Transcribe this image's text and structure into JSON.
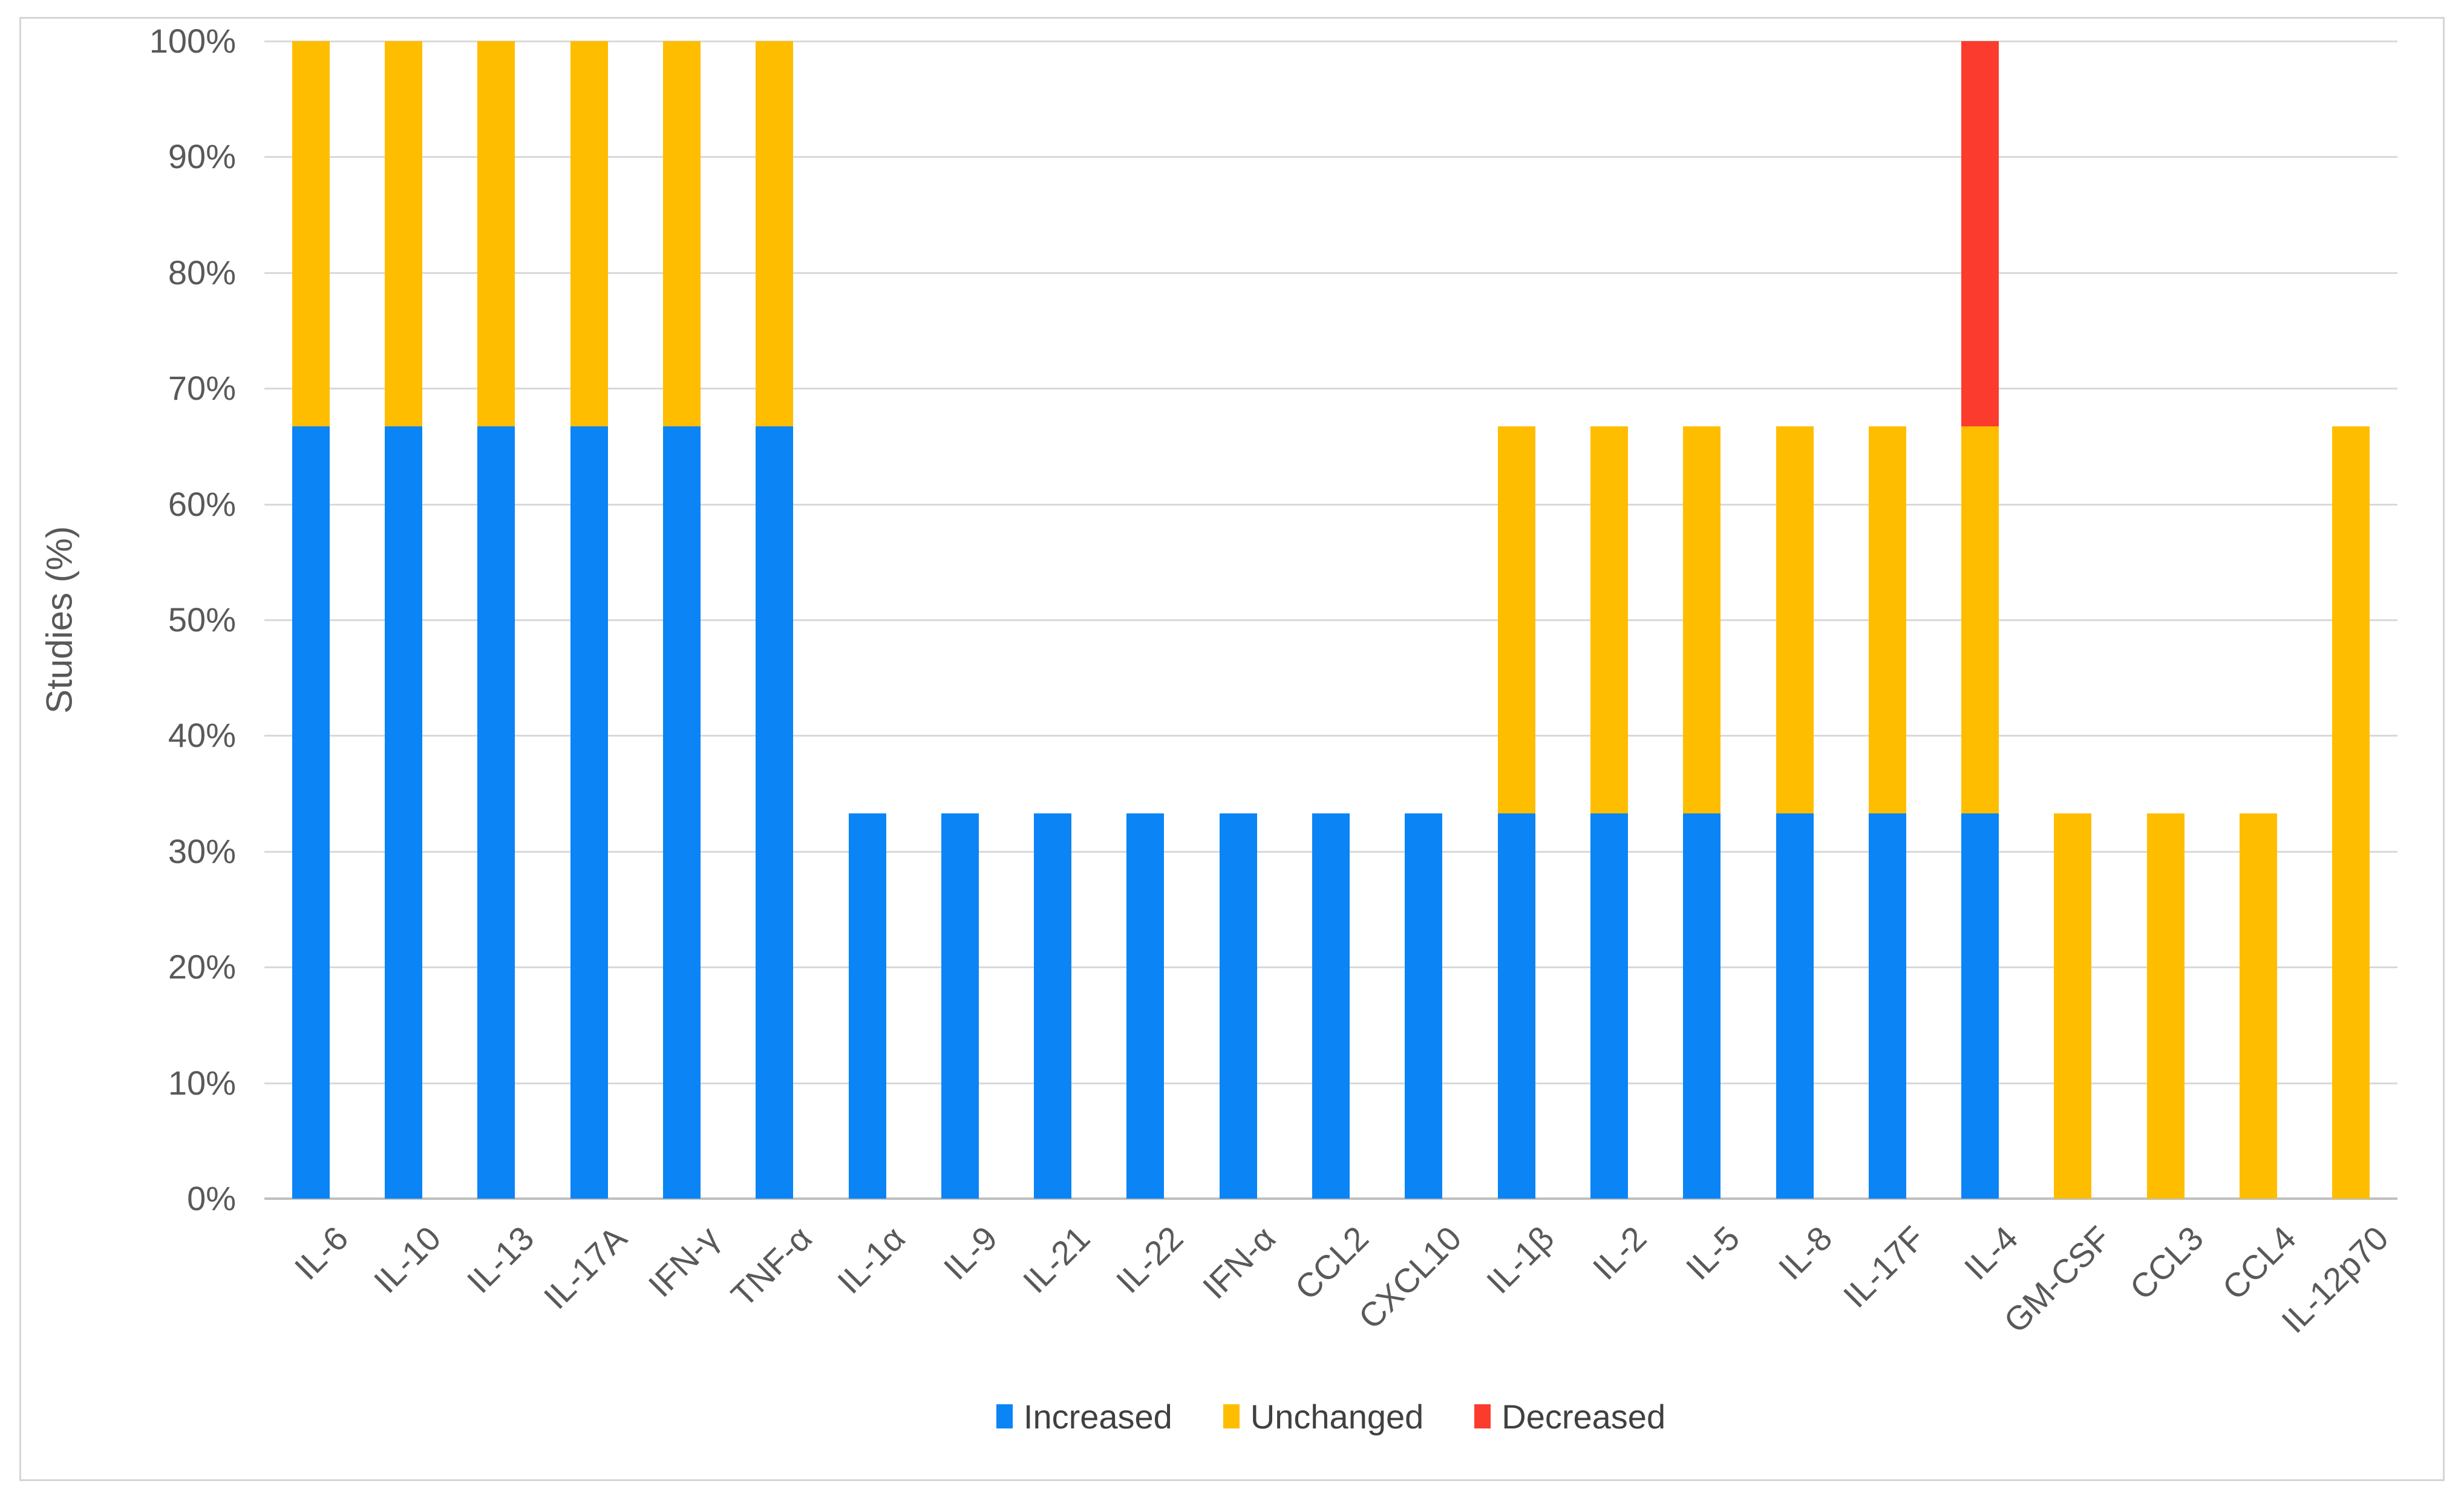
{
  "chart_data": {
    "type": "bar",
    "stacked": true,
    "title": "",
    "xlabel": "",
    "ylabel": "Studies (%)",
    "ylim": [
      0,
      100
    ],
    "grid": true,
    "legend_position": "bottom",
    "yticks": [
      "0%",
      "10%",
      "20%",
      "30%",
      "40%",
      "50%",
      "60%",
      "70%",
      "80%",
      "90%",
      "100%"
    ],
    "ytick_values": [
      0,
      10,
      20,
      30,
      40,
      50,
      60,
      70,
      80,
      90,
      100
    ],
    "categories": [
      "IL-6",
      "IL-10",
      "IL-13",
      "IL-17A",
      "IFN-γ",
      "TNF-α",
      "IL-1α",
      "IL-9",
      "IL-21",
      "IL-22",
      "IFN-α",
      "CCL2",
      "CXCL10",
      "IL-1β",
      "IL-2",
      "IL-5",
      "IL-8",
      "IL-17F",
      "IL-4",
      "GM-CSF",
      "CCL3",
      "CCL4",
      "IL-12p70"
    ],
    "series": [
      {
        "name": "Increased",
        "color": "#0b84f5",
        "values": [
          66.7,
          66.7,
          66.7,
          66.7,
          66.7,
          66.7,
          33.3,
          33.3,
          33.3,
          33.3,
          33.3,
          33.3,
          33.3,
          33.3,
          33.3,
          33.3,
          33.3,
          33.3,
          33.3,
          0,
          0,
          0,
          0
        ]
      },
      {
        "name": "Unchanged",
        "color": "#ffbd00",
        "values": [
          33.3,
          33.3,
          33.3,
          33.3,
          33.3,
          33.3,
          0,
          0,
          0,
          0,
          0,
          0,
          0,
          33.4,
          33.4,
          33.4,
          33.4,
          33.4,
          33.4,
          33.3,
          33.3,
          33.3,
          66.7
        ]
      },
      {
        "name": "Decreased",
        "color": "#fb3b2d",
        "values": [
          0,
          0,
          0,
          0,
          0,
          0,
          0,
          0,
          0,
          0,
          0,
          0,
          0,
          0,
          0,
          0,
          0,
          0,
          33.3,
          0,
          0,
          0,
          0
        ]
      }
    ]
  }
}
